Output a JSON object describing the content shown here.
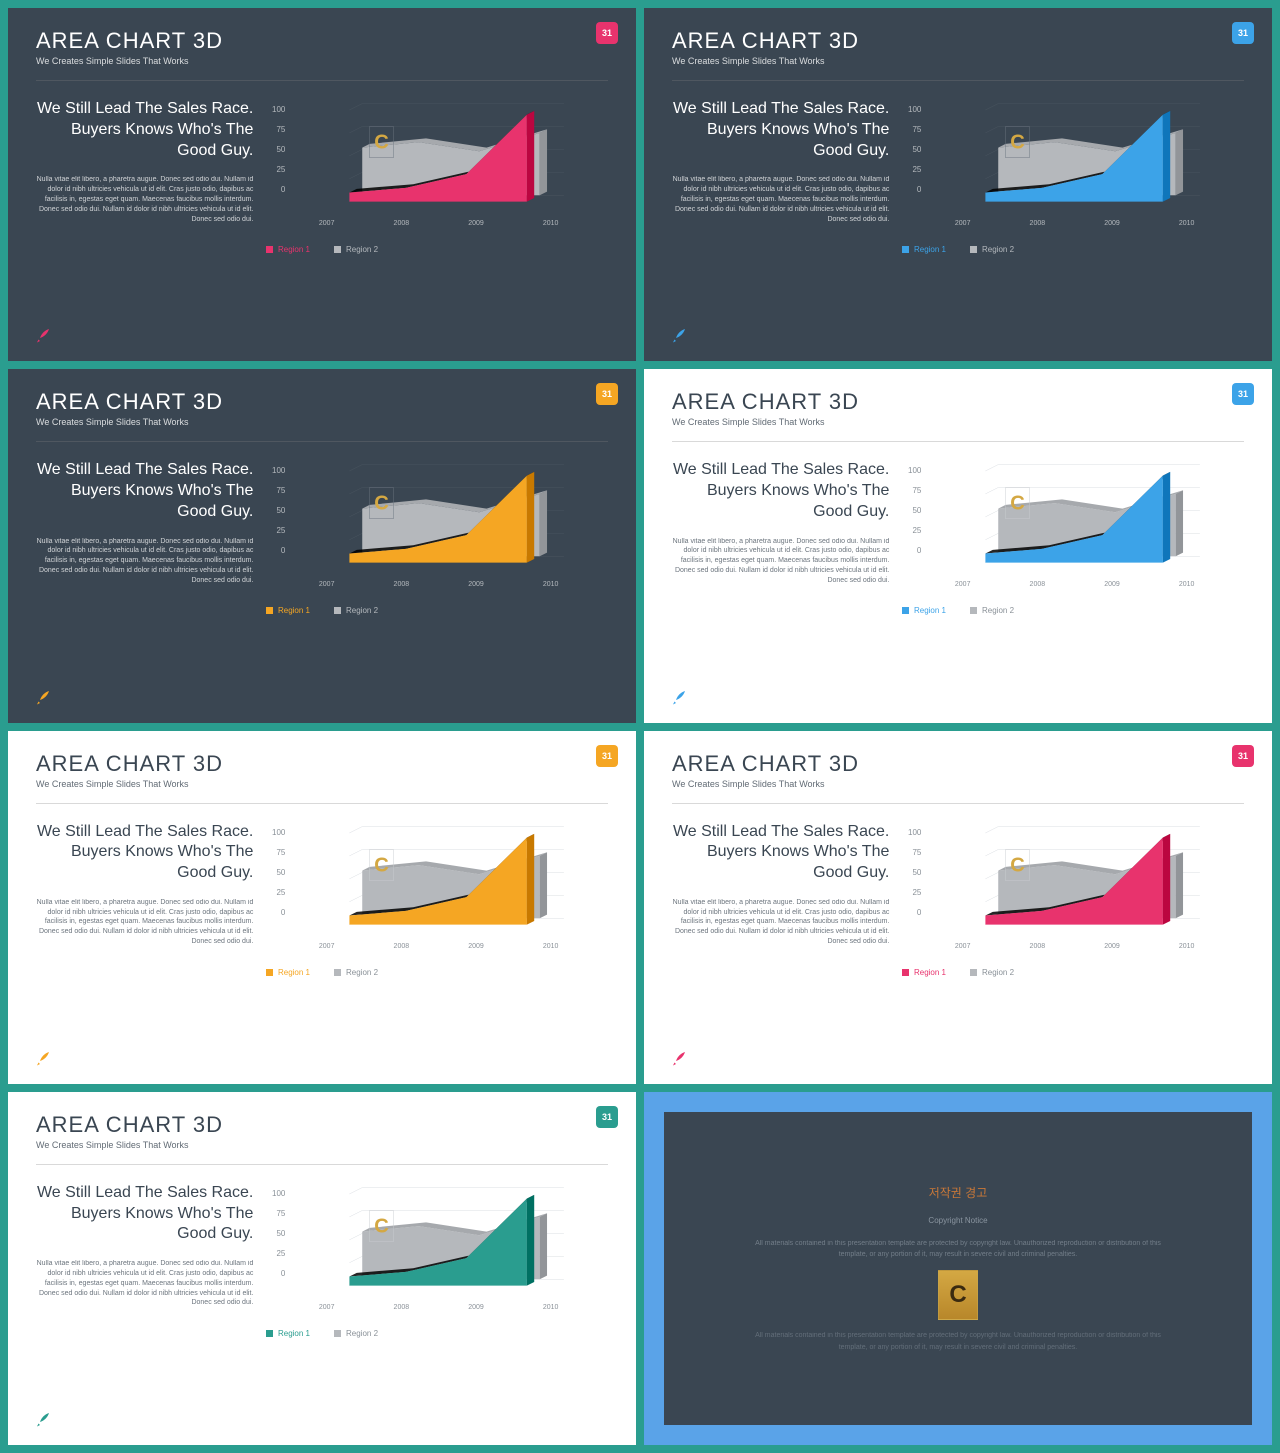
{
  "page_bg": "#2a9d8f",
  "slide_title": "AREA CHART 3D",
  "slide_subtitle": "We Creates Simple Slides That Works",
  "badge_num": "31",
  "headline": "We Still Lead The Sales Race. Buyers Knows Who's The Good Guy.",
  "body_text": "Nulla vitae elit libero, a pharetra augue. Donec sed odio dui. Nullam id dolor id nibh ultricies vehicula ut id elit. Cras justo odio, dapibus ac facilisis in, egestas eget quam. Maecenas faucibus mollis interdum. Donec sed odio dui. Nullam id dolor id nibh ultricies vehicula ut id elit. Donec sed odio dui.",
  "chart": {
    "type": "area-3d",
    "x_labels": [
      "2007",
      "2008",
      "2009",
      "2010"
    ],
    "y_ticks": [
      0,
      25,
      50,
      75,
      100
    ],
    "region2_color": "#b5b8bc",
    "region2_values": [
      52,
      58,
      48,
      68
    ],
    "region1_values": [
      10,
      15,
      30,
      95
    ]
  },
  "legend": {
    "r1": "Region 1",
    "r2": "Region 2"
  },
  "variants": [
    {
      "theme": "dark",
      "accent": "#e8336d",
      "badge": "#e8336d"
    },
    {
      "theme": "dark",
      "accent": "#3ca3e8",
      "badge": "#3ca3e8"
    },
    {
      "theme": "dark",
      "accent": "#f5a623",
      "badge": "#f5a623"
    },
    {
      "theme": "light",
      "accent": "#3ca3e8",
      "badge": "#3ca3e8"
    },
    {
      "theme": "light",
      "accent": "#f5a623",
      "badge": "#f5a623"
    },
    {
      "theme": "light",
      "accent": "#e8336d",
      "badge": "#e8336d"
    },
    {
      "theme": "light",
      "accent": "#2a9d8f",
      "badge": "#2a9d8f"
    }
  ],
  "copyright": {
    "title": "저작권 경고",
    "line1": "Copyright Notice",
    "text": "All materials contained in this presentation template are protected by copyright law. Unauthorized reproduction or distribution of this template, or any portion of it, may result in severe civil and criminal penalties.",
    "bg_outer": "#5aa3e8",
    "bg_inner": "#3a4652"
  }
}
